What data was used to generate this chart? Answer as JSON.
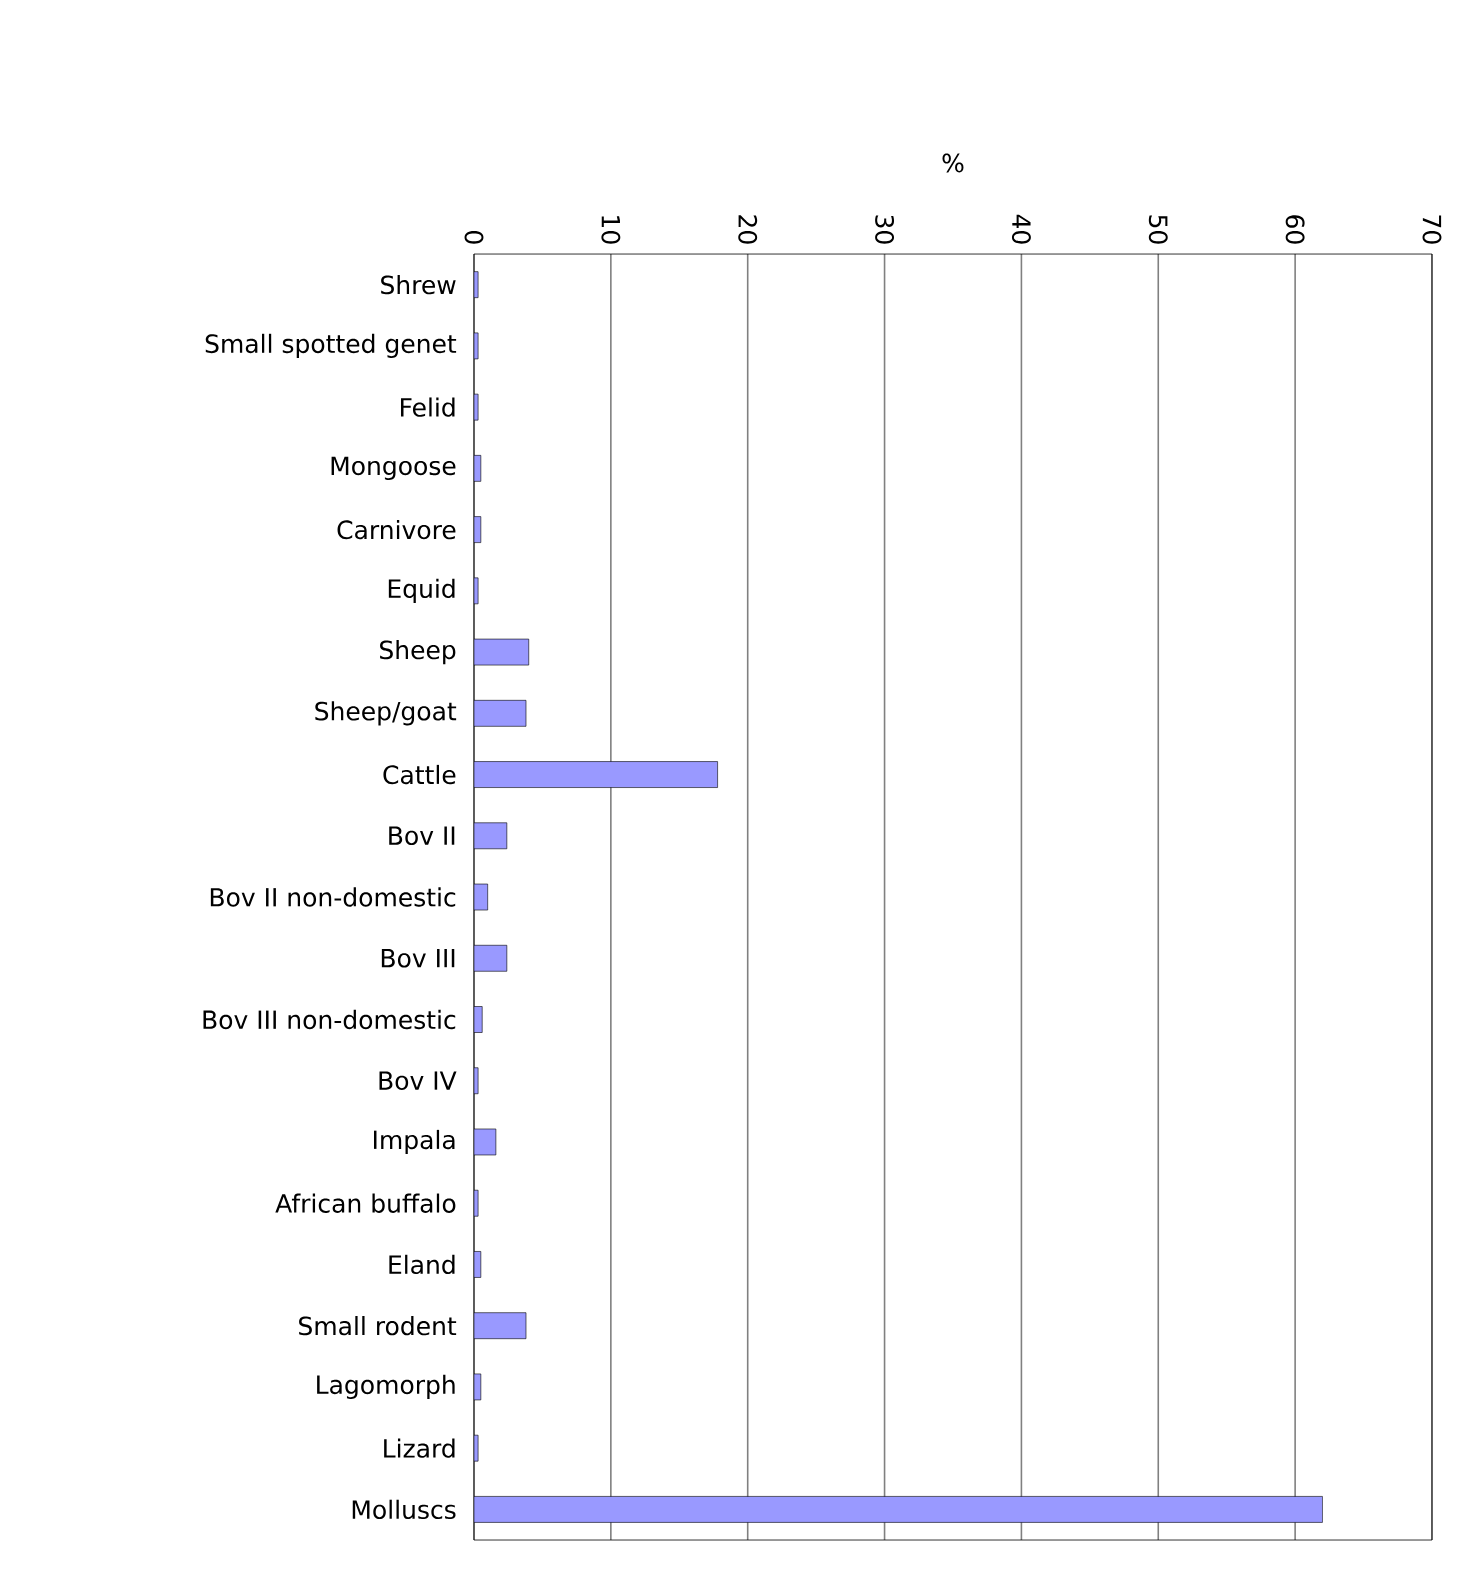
{
  "chart_data": {
    "type": "bar",
    "orientation": "horizontal",
    "xlabel": "%",
    "categories": [
      "Shrew",
      "Small spotted genet",
      "Felid",
      "Mongoose",
      "Carnivore",
      "Equid",
      "Sheep",
      "Sheep/goat",
      "Cattle",
      "Bov II",
      "Bov II non-domestic",
      "Bov III",
      "Bov III non-domestic",
      "Bov IV",
      "Impala",
      "African buffalo",
      "Eland",
      "Small rodent",
      "Lagomorph",
      "Lizard",
      "Molluscs"
    ],
    "values": [
      0.3,
      0.3,
      0.3,
      0.5,
      0.5,
      0.3,
      4.0,
      3.8,
      17.8,
      2.4,
      1.0,
      2.4,
      0.6,
      0.3,
      1.6,
      0.3,
      0.5,
      3.8,
      0.5,
      0.3,
      62
    ],
    "color": "#9999ff",
    "xlim": [
      0,
      70
    ],
    "xticks": [
      0,
      10,
      20,
      30,
      40,
      50,
      60,
      70
    ],
    "grid": "x"
  }
}
